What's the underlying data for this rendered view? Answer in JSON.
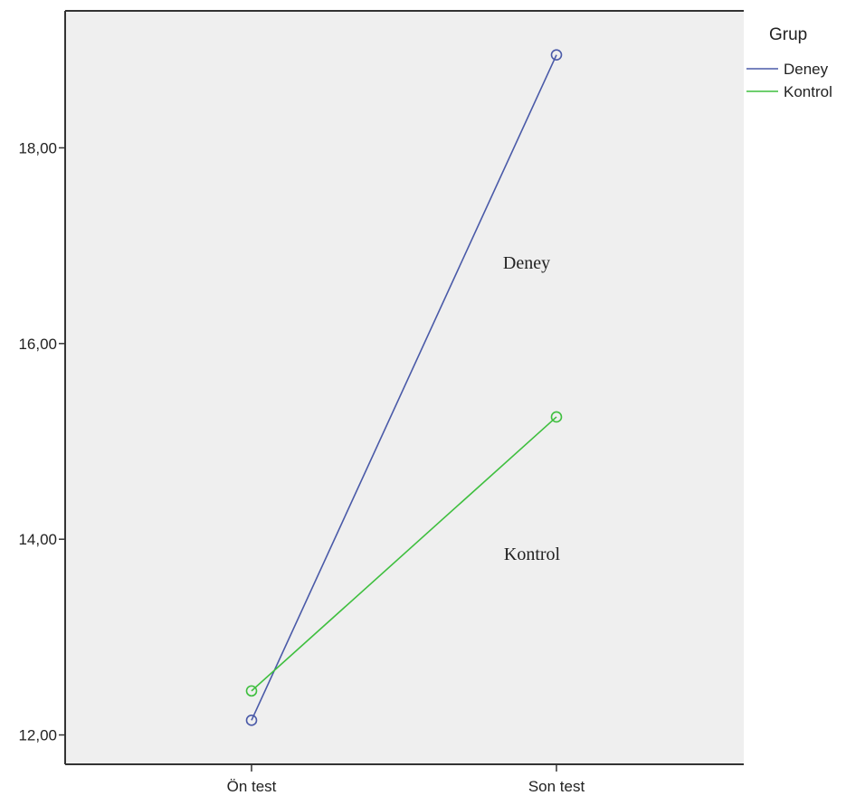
{
  "chart_data": {
    "type": "line",
    "categories": [
      "Ön test",
      "Son test"
    ],
    "series": [
      {
        "name": "Deney",
        "values": [
          12.15,
          18.95
        ],
        "color": "#4a5aa8"
      },
      {
        "name": "Kontrol",
        "values": [
          12.45,
          15.25
        ],
        "color": "#3fbf3f"
      }
    ],
    "ylim": [
      11.7,
      19.4
    ],
    "yticks": [
      12.0,
      14.0,
      16.0,
      18.0
    ],
    "ytick_labels": [
      "12,00",
      "14,00",
      "16,00",
      "18,00"
    ],
    "legend": {
      "title": "Grup",
      "position": "top-right"
    },
    "annotations": [
      "Deney",
      "Kontrol"
    ],
    "plot_background": "#efefef",
    "grid": false
  }
}
